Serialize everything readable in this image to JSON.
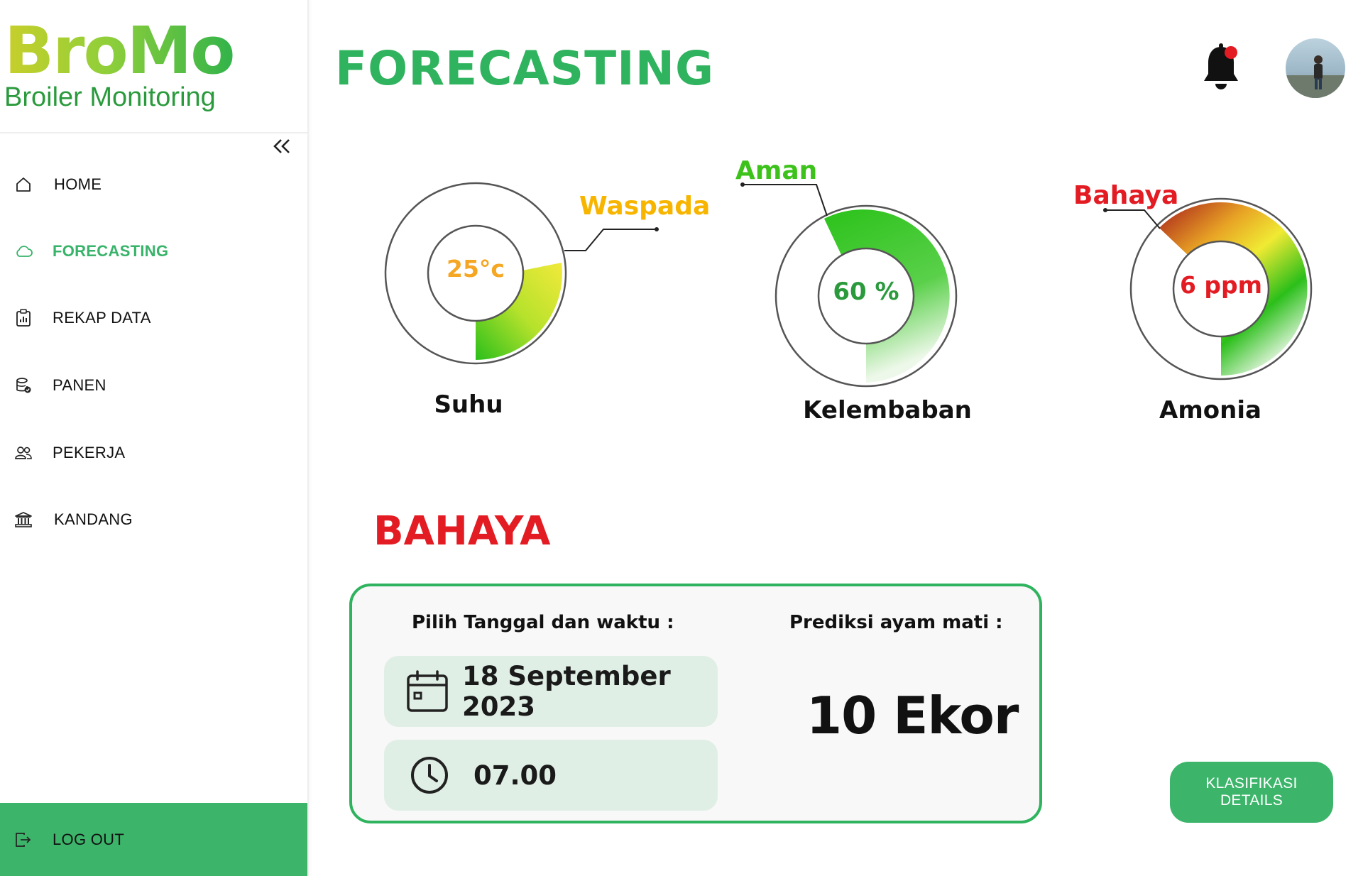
{
  "brand": {
    "title": "BroMo",
    "subtitle": "Broiler Monitoring"
  },
  "sidebar": {
    "items": [
      {
        "label": "HOME",
        "icon": "home-icon"
      },
      {
        "label": "FORECASTING",
        "icon": "cloud-icon",
        "active": true
      },
      {
        "label": "REKAP DATA",
        "icon": "clipboard-chart-icon"
      },
      {
        "label": "PANEN",
        "icon": "database-check-icon"
      },
      {
        "label": "PEKERJA",
        "icon": "users-icon"
      },
      {
        "label": "KANDANG",
        "icon": "bank-icon"
      }
    ],
    "logout_label": "LOG OUT"
  },
  "header": {
    "title": "FORECASTING"
  },
  "gauges": [
    {
      "name": "Suhu",
      "value": "25°c",
      "status": "Waspada",
      "status_color": "#f7b500",
      "value_color": "#f5a623"
    },
    {
      "name": "Kelembaban",
      "value": "60 %",
      "status": "Aman",
      "status_color": "#3cc21a",
      "value_color": "#2a9a3c"
    },
    {
      "name": "Amonia",
      "value": "6 ppm",
      "status": "Bahaya",
      "status_color": "#e31b23",
      "value_color": "#e31b23"
    }
  ],
  "overall_status": {
    "label": "BAHAYA",
    "color": "#e31b23"
  },
  "forecast_card": {
    "date_time_heading": "Pilih Tanggal dan waktu :",
    "date_value": "18 September 2023",
    "time_value": "07.00",
    "prediction_heading": "Prediksi ayam mati :",
    "prediction_value": "10 Ekor"
  },
  "details_button": "KLASIFIKASI DETAILS",
  "colors": {
    "accent": "#2fb35e",
    "button": "#3cb56b",
    "danger": "#e31b23"
  }
}
